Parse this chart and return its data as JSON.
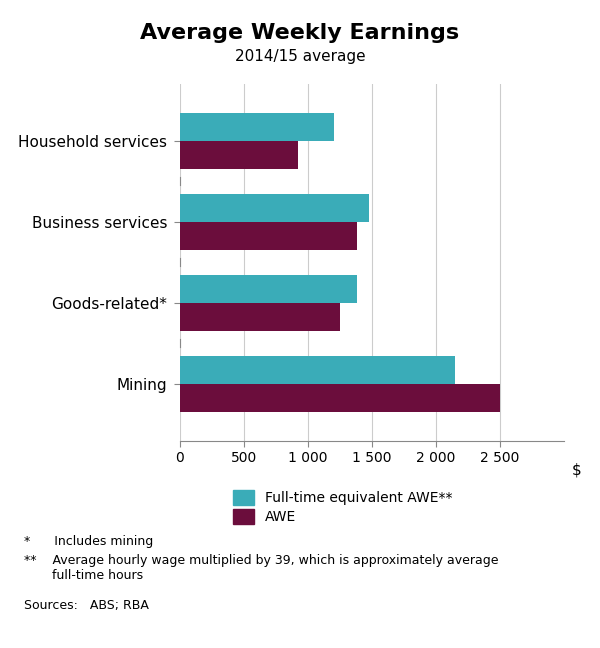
{
  "title": "Average Weekly Earnings",
  "subtitle": "2014/15 average",
  "categories": [
    "Mining",
    "Goods-related*",
    "Business services",
    "Household services"
  ],
  "fulltime_values": [
    2150,
    1380,
    1480,
    1200
  ],
  "awe_values": [
    2500,
    1250,
    1380,
    920
  ],
  "fulltime_color": "#3AACB8",
  "awe_color": "#6B0D3C",
  "xlim": [
    0,
    3000
  ],
  "xticks": [
    0,
    500,
    1000,
    1500,
    2000,
    2500
  ],
  "xtick_labels": [
    "0",
    "500",
    "1 000",
    "1 500",
    "2 000",
    "2 500"
  ],
  "dollar_label": "$",
  "legend_labels": [
    "Full-time equivalent AWE**",
    "AWE"
  ],
  "footnote1": "*      Includes mining",
  "footnote2": "**    Average hourly wage multiplied by 39, which is approximately average\n       full-time hours",
  "sources": "Sources:   ABS; RBA",
  "bar_height": 0.35,
  "background_color": "#ffffff",
  "grid_color": "#cccccc"
}
